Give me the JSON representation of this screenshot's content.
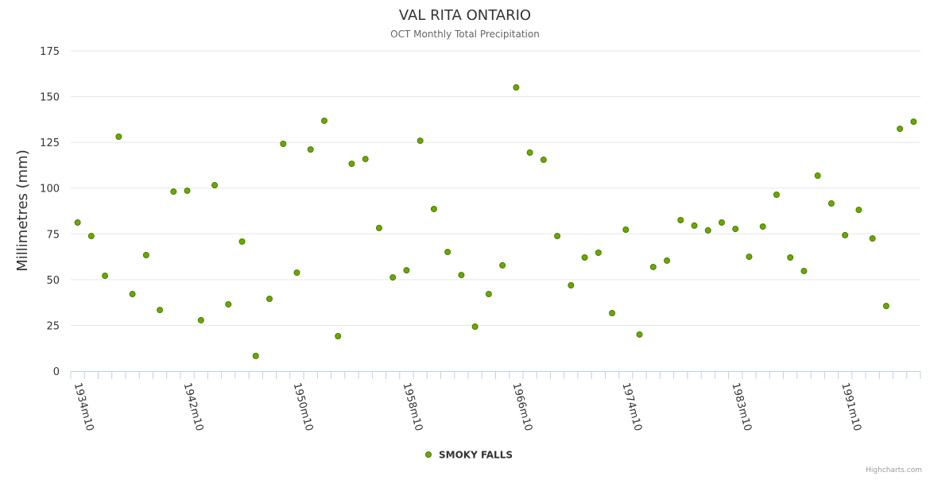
{
  "chart_data": {
    "type": "scatter",
    "title": "VAL RITA ONTARIO",
    "subtitle": "OCT Monthly Total Precipitation",
    "xlabel": "",
    "ylabel": "Millimetres (mm)",
    "ylim": [
      0,
      175
    ],
    "yticks": [
      0,
      25,
      50,
      75,
      100,
      125,
      150,
      175
    ],
    "grid": true,
    "legend_position": "bottom-center",
    "credits": "Highcharts.com",
    "categories": [
      "1934m10",
      "1935m10",
      "1936m10",
      "1937m10",
      "1938m10",
      "1939m10",
      "1940m10",
      "1941m10",
      "1942m10",
      "1943m10",
      "1944m10",
      "1945m10",
      "1946m10",
      "1947m10",
      "1948m10",
      "1949m10",
      "1950m10",
      "1951m10",
      "1952m10",
      "1953m10",
      "1954m10",
      "1955m10",
      "1956m10",
      "1957m10",
      "1958m10",
      "1959m10",
      "1960m10",
      "1961m10",
      "1962m10",
      "1963m10",
      "1964m10",
      "1965m10",
      "1966m10",
      "1967m10",
      "1968m10",
      "1969m10",
      "1970m10",
      "1971m10",
      "1972m10",
      "1973m10",
      "1974m10",
      "1976m10",
      "1977m10",
      "1978m10",
      "1979m10",
      "1980m10",
      "1981m10",
      "1982m10",
      "1983m10",
      "1984m10",
      "1985m10",
      "1986m10",
      "1987m10",
      "1988m10",
      "1989m10",
      "1990m10",
      "1991m10",
      "1992m10",
      "1993m10",
      "1994m10",
      "1995m10",
      "1996m10"
    ],
    "tick_label_every": 8,
    "series": [
      {
        "name": "SMOKY FALLS",
        "color": "#6aa800",
        "values": [
          81.2,
          73.8,
          52.1,
          128.1,
          42.1,
          63.4,
          33.4,
          98.1,
          98.6,
          27.8,
          101.6,
          36.5,
          70.8,
          8.3,
          39.5,
          124.2,
          53.8,
          121.1,
          136.8,
          19.1,
          113.3,
          115.9,
          78.2,
          51.2,
          55.1,
          125.9,
          88.6,
          65.1,
          52.5,
          24.3,
          42.1,
          57.8,
          155.0,
          119.4,
          115.5,
          73.8,
          46.9,
          62.1,
          64.7,
          31.7,
          77.3,
          20.0,
          56.9,
          60.4,
          82.5,
          79.5,
          76.9,
          81.2,
          77.7,
          62.5,
          79.0,
          96.4,
          62.1,
          54.7,
          106.8,
          91.6,
          74.3,
          88.1,
          72.5,
          35.6,
          132.4,
          136.3
        ]
      }
    ]
  }
}
